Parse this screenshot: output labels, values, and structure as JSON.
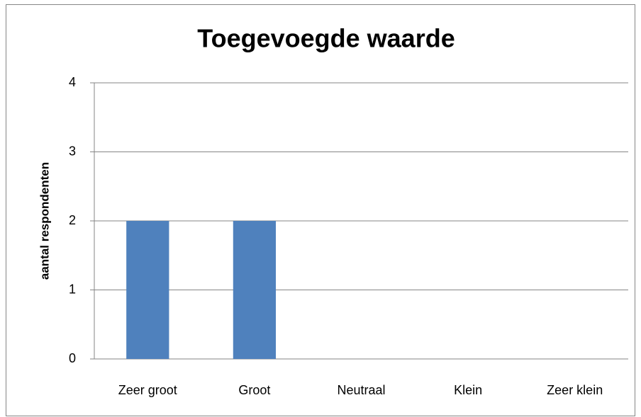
{
  "chart_data": {
    "type": "bar",
    "title": "Toegevoegde waarde",
    "y_label": "aantal respondenten",
    "categories": [
      "Zeer groot",
      "Groot",
      "Neutraal",
      "Klein",
      "Zeer klein"
    ],
    "values": [
      2,
      2,
      0,
      0,
      0
    ],
    "color": "#4f81bd",
    "ylim": [
      0,
      4
    ],
    "yticks": [
      0,
      1,
      2,
      3,
      4
    ],
    "grid": true
  }
}
